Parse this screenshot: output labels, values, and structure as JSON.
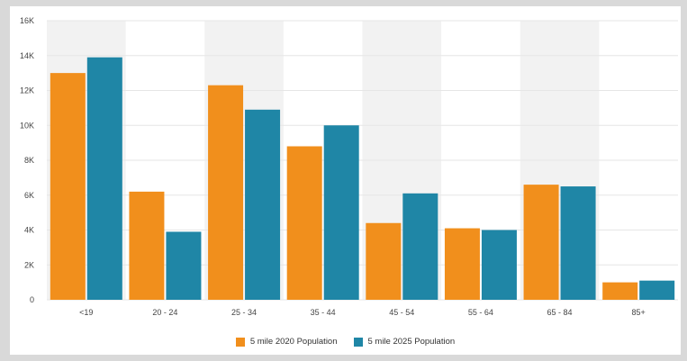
{
  "chart_data": {
    "type": "bar",
    "title": "",
    "xlabel": "",
    "ylabel": "",
    "categories": [
      "<19",
      "20 - 24",
      "25 - 34",
      "35 - 44",
      "45 - 54",
      "55 - 64",
      "65 - 84",
      "85+"
    ],
    "ylim": [
      0,
      16000
    ],
    "yticks": [
      0,
      2000,
      4000,
      6000,
      8000,
      10000,
      12000,
      14000,
      16000
    ],
    "ytick_labels": [
      "0",
      "2K",
      "4K",
      "6K",
      "8K",
      "10K",
      "12K",
      "14K",
      "16K"
    ],
    "grid": true,
    "alternating_background": true,
    "legend_position": "bottom",
    "series": [
      {
        "name": "5 mile 2020 Population",
        "color": "#f18f1c",
        "values": [
          13000,
          6200,
          12300,
          8800,
          4400,
          4100,
          6600,
          1000
        ]
      },
      {
        "name": "5 mile 2025 Population",
        "color": "#1f86a6",
        "values": [
          13900,
          3900,
          10900,
          10000,
          6100,
          4000,
          6500,
          1100
        ]
      }
    ]
  }
}
